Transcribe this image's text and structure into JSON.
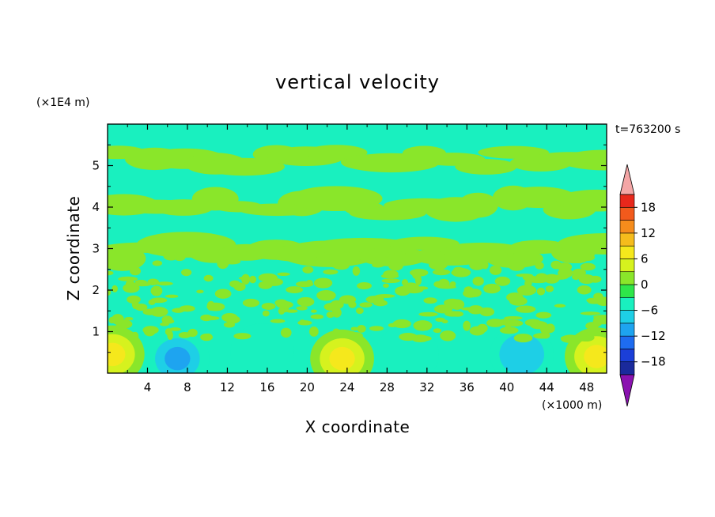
{
  "chart_data": {
    "type": "heatmap",
    "title": "vertical velocity",
    "xlabel": "X coordinate",
    "ylabel": "Z coordinate",
    "x_multiplier_label": "(×1000 m)",
    "y_multiplier_label": "(×1E4 m)",
    "time_label": "t=763200 s",
    "xlim": [
      0,
      50
    ],
    "ylim": [
      0,
      6
    ],
    "x_ticks": [
      4,
      8,
      12,
      16,
      20,
      24,
      28,
      32,
      36,
      40,
      44,
      48
    ],
    "x_tick_labels": [
      "4",
      "8",
      "12",
      "16",
      "20",
      "24",
      "28",
      "32",
      "36",
      "40",
      "44",
      "48"
    ],
    "y_ticks": [
      1,
      2,
      3,
      4,
      5
    ],
    "y_tick_labels": [
      "1",
      "2",
      "3",
      "4",
      "5"
    ],
    "colorbar": {
      "levels": [
        -21,
        -18,
        -15,
        -12,
        -9,
        -6,
        -3,
        0,
        3,
        6,
        9,
        12,
        15,
        18,
        21
      ],
      "tick_values": [
        18,
        12,
        6,
        0,
        -6,
        -12,
        -18
      ],
      "tick_labels": [
        "18",
        "12",
        "6",
        "0",
        "−6",
        "−12",
        "−18"
      ],
      "colors": [
        "#3a0f7a",
        "#1a2a9c",
        "#1b3fd8",
        "#1e6cf0",
        "#1ea4f0",
        "#1ecfe6",
        "#19f0bf",
        "#2ee64a",
        "#8ae62a",
        "#d6f21e",
        "#f5e81c",
        "#f5bc1c",
        "#f58c1c",
        "#f25a1c",
        "#e8281c",
        "#d61a1a"
      ],
      "under_color": "#8a12b0",
      "over_color": "#f4a6a6",
      "extend": "both"
    },
    "background_value_color": "#19f0bf",
    "features": [
      {
        "kind": "band",
        "z_range": [
          4.8,
          5.5
        ],
        "value": 0.5
      },
      {
        "kind": "band",
        "z_range": [
          3.7,
          4.4
        ],
        "value": 0.5
      },
      {
        "kind": "band",
        "z_range": [
          2.6,
          3.3
        ],
        "value": 0.5
      },
      {
        "kind": "updraft",
        "x": 0.5,
        "z": 0.45,
        "peak": 7
      },
      {
        "kind": "updraft",
        "x": 23.5,
        "z": 0.35,
        "peak": 7
      },
      {
        "kind": "updraft",
        "x": 49.0,
        "z": 0.4,
        "peak": 7
      },
      {
        "kind": "downdraft",
        "x": 7.0,
        "z": 0.35,
        "peak": -9
      },
      {
        "kind": "downdraft",
        "x": 15.5,
        "z": 0.5,
        "peak": -5
      },
      {
        "kind": "downdraft",
        "x": 30.0,
        "z": 0.45,
        "peak": -5
      },
      {
        "kind": "downdraft",
        "x": 41.5,
        "z": 0.45,
        "peak": -8
      }
    ]
  }
}
